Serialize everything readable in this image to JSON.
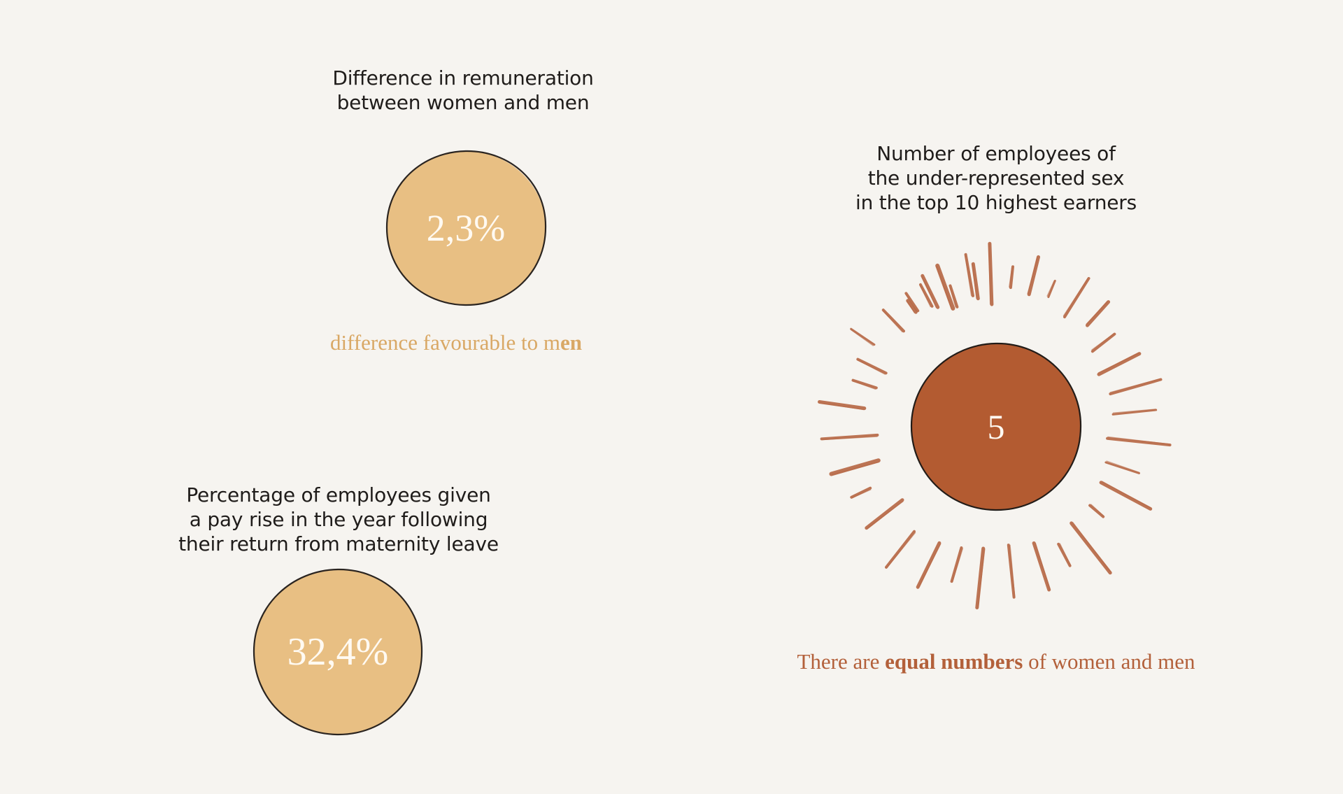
{
  "remuneration": {
    "heading_lines": [
      "Difference in remuneration",
      "between women and men"
    ],
    "value": "2,3%",
    "caption_prefix": "difference favourable to m",
    "caption_bold": "en",
    "fill_color": "#e8bf83",
    "caption_color": "#d9a865"
  },
  "pay_rise": {
    "heading_lines": [
      "Percentage of employees given",
      "a pay rise in the year following",
      "their return from maternity leave"
    ],
    "value": "32,4%",
    "fill_color": "#e8bf83"
  },
  "top_earners": {
    "heading_lines": [
      "Number of employees of",
      "the under-represented sex",
      "in the top 10 highest earners"
    ],
    "value": "5",
    "caption_prefix": "There are ",
    "caption_bold": "equal numbers",
    "caption_suffix": " of women and men",
    "fill_color": "#b35b31",
    "ray_color": "#b86a47",
    "caption_color": "#b3603a"
  }
}
